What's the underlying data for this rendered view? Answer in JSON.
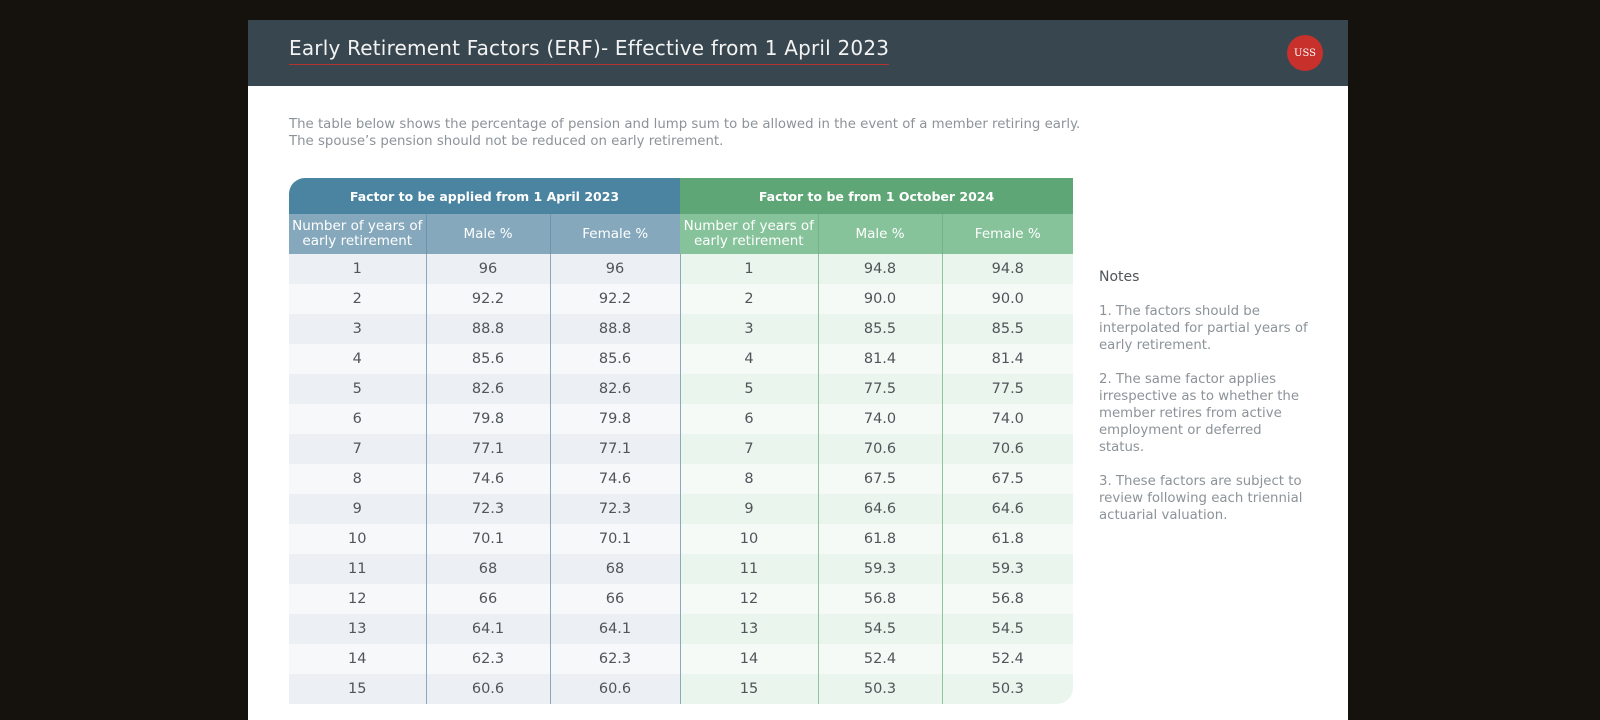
{
  "header": {
    "title": "Early Retirement Factors (ERF)- Effective from 1 April 2023",
    "logo_text": "USS"
  },
  "intro": {
    "line1": "The table below shows the percentage of pension and lump sum to be allowed in the event of a member retiring early.",
    "line2": "The spouse’s pension should not be reduced on early retirement."
  },
  "table": {
    "group1_title": "Factor to be applied from 1 April 2023",
    "group2_title": "Factor to be from 1 October 2024",
    "columns": [
      "Number of years of early retirement",
      "Male %",
      "Female %",
      "Number of years of early retirement",
      "Male %",
      "Female %"
    ],
    "rows": [
      [
        "1",
        "96",
        "96",
        "1",
        "94.8",
        "94.8"
      ],
      [
        "2",
        "92.2",
        "92.2",
        "2",
        "90.0",
        "90.0"
      ],
      [
        "3",
        "88.8",
        "88.8",
        "3",
        "85.5",
        "85.5"
      ],
      [
        "4",
        "85.6",
        "85.6",
        "4",
        "81.4",
        "81.4"
      ],
      [
        "5",
        "82.6",
        "82.6",
        "5",
        "77.5",
        "77.5"
      ],
      [
        "6",
        "79.8",
        "79.8",
        "6",
        "74.0",
        "74.0"
      ],
      [
        "7",
        "77.1",
        "77.1",
        "7",
        "70.6",
        "70.6"
      ],
      [
        "8",
        "74.6",
        "74.6",
        "8",
        "67.5",
        "67.5"
      ],
      [
        "9",
        "72.3",
        "72.3",
        "9",
        "64.6",
        "64.6"
      ],
      [
        "10",
        "70.1",
        "70.1",
        "10",
        "61.8",
        "61.8"
      ],
      [
        "11",
        "68",
        "68",
        "11",
        "59.3",
        "59.3"
      ],
      [
        "12",
        "66",
        "66",
        "12",
        "56.8",
        "56.8"
      ],
      [
        "13",
        "64.1",
        "64.1",
        "13",
        "54.5",
        "54.5"
      ],
      [
        "14",
        "62.3",
        "62.3",
        "14",
        "52.4",
        "52.4"
      ],
      [
        "15",
        "60.6",
        "60.6",
        "15",
        "50.3",
        "50.3"
      ]
    ]
  },
  "notes": {
    "title": "Notes",
    "items": [
      "1. The factors should be interpolated for partial years of early retirement.",
      "2.  The same factor applies irrespective as to whether the member retires from active employment or deferred status.",
      "3.  These factors are subject to review following each triennial actuarial valuation."
    ]
  },
  "colors": {
    "header_bg": "#38474f",
    "blue_group": "#4a84a0",
    "green_group": "#5ea676",
    "accent_red": "#c7302b"
  }
}
